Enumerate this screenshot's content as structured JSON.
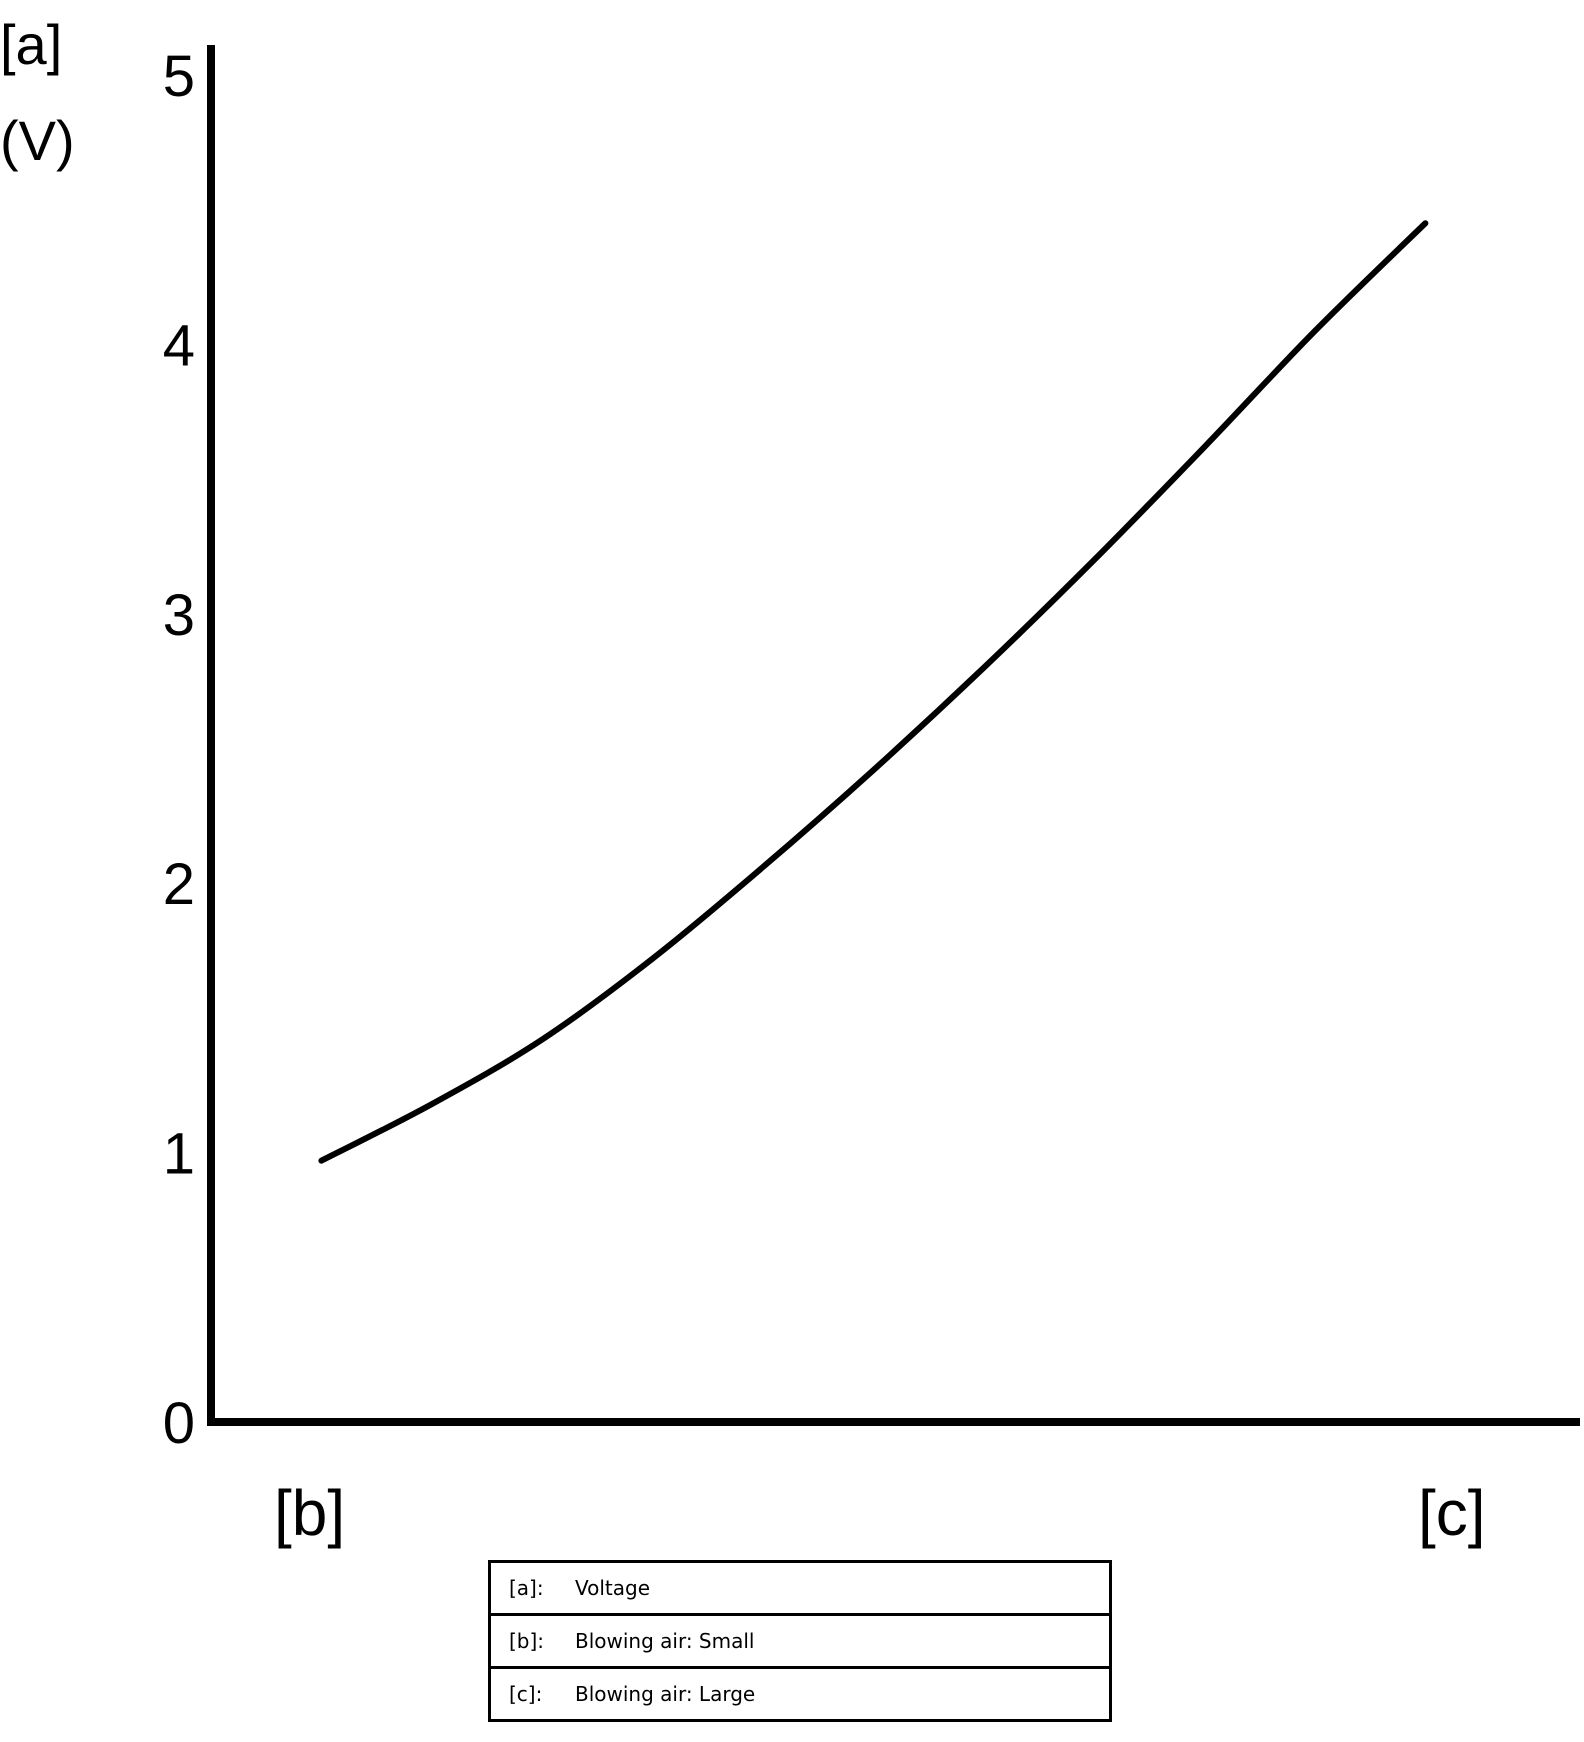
{
  "chart_data": {
    "type": "line",
    "ylabel": "[a]",
    "yunit": "(V)",
    "ylim": [
      0,
      5
    ],
    "yticks": [
      "0",
      "1",
      "2",
      "3",
      "4",
      "5"
    ],
    "x_start_label": "[b]",
    "x_end_label": "[c]",
    "series": [
      {
        "x": [
          0.0,
          0.1,
          0.2,
          0.3,
          0.4,
          0.5,
          0.6,
          0.7,
          0.8,
          0.9,
          1.0
        ],
        "values": [
          0.97,
          1.18,
          1.42,
          1.72,
          2.06,
          2.42,
          2.8,
          3.2,
          3.62,
          4.05,
          4.45
        ]
      }
    ],
    "xlim": [
      -0.1,
      1.14
    ],
    "grid": false,
    "line_color": "#000000"
  },
  "legend": [
    {
      "key": "[a]:",
      "text": "Voltage"
    },
    {
      "key": "[b]:",
      "text": "Blowing air: Small"
    },
    {
      "key": "[c]:",
      "text": "Blowing air: Large"
    }
  ]
}
